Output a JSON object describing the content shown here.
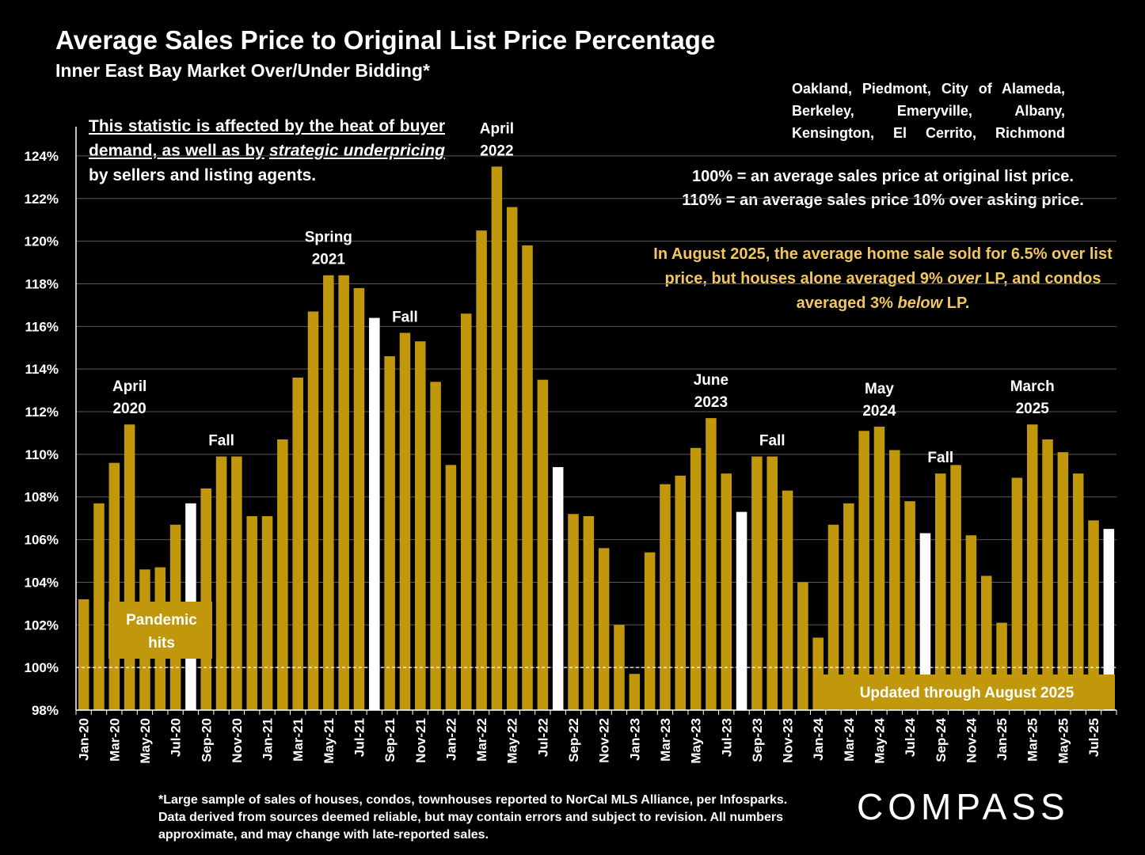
{
  "title": "Average Sales Price to Original List Price Percentage",
  "subtitle": "Inner East Bay Market Over/Under Bidding*",
  "region_note": "Oakland, Piedmont, City of Alameda, Berkeley, Emeryville, Albany, Kensington, El Cerrito, Richmond",
  "note_left_underlined": "This statistic is affected by the heat of buyer demand, as well as by",
  "note_left_italic": "strategic underpricing",
  "note_left_tail": "by sellers and listing agents.",
  "definition_1": "100% = an average sales price at original list price.",
  "definition_2": "110% = an average sales price 10% over asking price.",
  "aug_note_1": "In August 2025, the average home sale sold for 6.5% over list price, but houses alone averaged 9%",
  "aug_note_over": "over",
  "aug_note_2": "LP, and condos averaged 3%",
  "aug_note_below": "below",
  "aug_note_3": "LP.",
  "footnote": "*Large sample of sales of houses, condos, townhouses reported to NorCal MLS Alliance, per Infosparks. Data derived from sources deemed reliable, but may contain errors and subject to revision. All numbers approximate, and may change with late-reported sales.",
  "logo": "COMPASS",
  "colors": {
    "bar": "#c1970c",
    "highlight": "#ffffff",
    "background": "#000000",
    "note": "#f2c75c"
  },
  "chart_data": {
    "type": "bar",
    "ylim": [
      98,
      125
    ],
    "y_ticks": [
      "98%",
      "100%",
      "102%",
      "104%",
      "106%",
      "108%",
      "110%",
      "112%",
      "114%",
      "116%",
      "118%",
      "120%",
      "122%",
      "124%"
    ],
    "tick_labels": [
      "Jan-20",
      "Mar-20",
      "May-20",
      "Jul-20",
      "Sep-20",
      "Nov-20",
      "Jan-21",
      "Mar-21",
      "May-21",
      "Jul-21",
      "Sep-21",
      "Nov-21",
      "Jan-22",
      "Mar-22",
      "May-22",
      "Jul-22",
      "Sep-22",
      "Nov-22",
      "Jan-23",
      "Mar-23",
      "May-23",
      "Jul-23",
      "Sep-23",
      "Nov-23",
      "Jan-24",
      "Mar-24",
      "May-24",
      "Jul-24",
      "Sep-24",
      "Nov-24",
      "Jan-25",
      "Mar-25",
      "May-25",
      "Jul-25"
    ],
    "values": [
      103.2,
      107.7,
      109.6,
      111.4,
      104.6,
      104.7,
      106.7,
      107.7,
      108.4,
      109.9,
      109.9,
      107.1,
      107.1,
      110.7,
      113.6,
      116.7,
      118.4,
      118.4,
      117.8,
      116.4,
      114.6,
      115.7,
      115.3,
      113.4,
      109.5,
      116.6,
      120.5,
      123.5,
      121.6,
      119.8,
      113.5,
      109.4,
      107.2,
      107.1,
      105.6,
      102.0,
      99.7,
      105.4,
      108.6,
      109.0,
      110.3,
      111.7,
      109.1,
      107.3,
      109.9,
      109.9,
      108.3,
      104.0,
      101.4,
      106.7,
      107.7,
      111.1,
      111.3,
      110.2,
      107.8,
      106.3,
      109.1,
      109.5,
      106.2,
      104.3,
      102.1,
      108.9,
      111.4,
      110.7,
      110.1,
      109.1,
      106.9,
      106.5
    ],
    "highlighted_months": [
      "Aug-20",
      "Aug-21",
      "Aug-22",
      "Aug-23",
      "Aug-24",
      "Aug-25"
    ],
    "annotations": [
      {
        "text": "April 2020",
        "index": 3
      },
      {
        "text": "Fall",
        "index": 9
      },
      {
        "text": "Spring 2021",
        "index": 16
      },
      {
        "text": "Fall",
        "index": 21
      },
      {
        "text": "April 2022",
        "index": 27
      },
      {
        "text": "June 2023",
        "index": 41
      },
      {
        "text": "Fall",
        "index": 45
      },
      {
        "text": "May 2024",
        "index": 52
      },
      {
        "text": "Fall",
        "index": 56
      },
      {
        "text": "March 2025",
        "index": 62
      }
    ],
    "label_boxes": [
      "Pandemic hits",
      "Updated through August 2025"
    ],
    "reference_line": 100,
    "grid": true
  }
}
